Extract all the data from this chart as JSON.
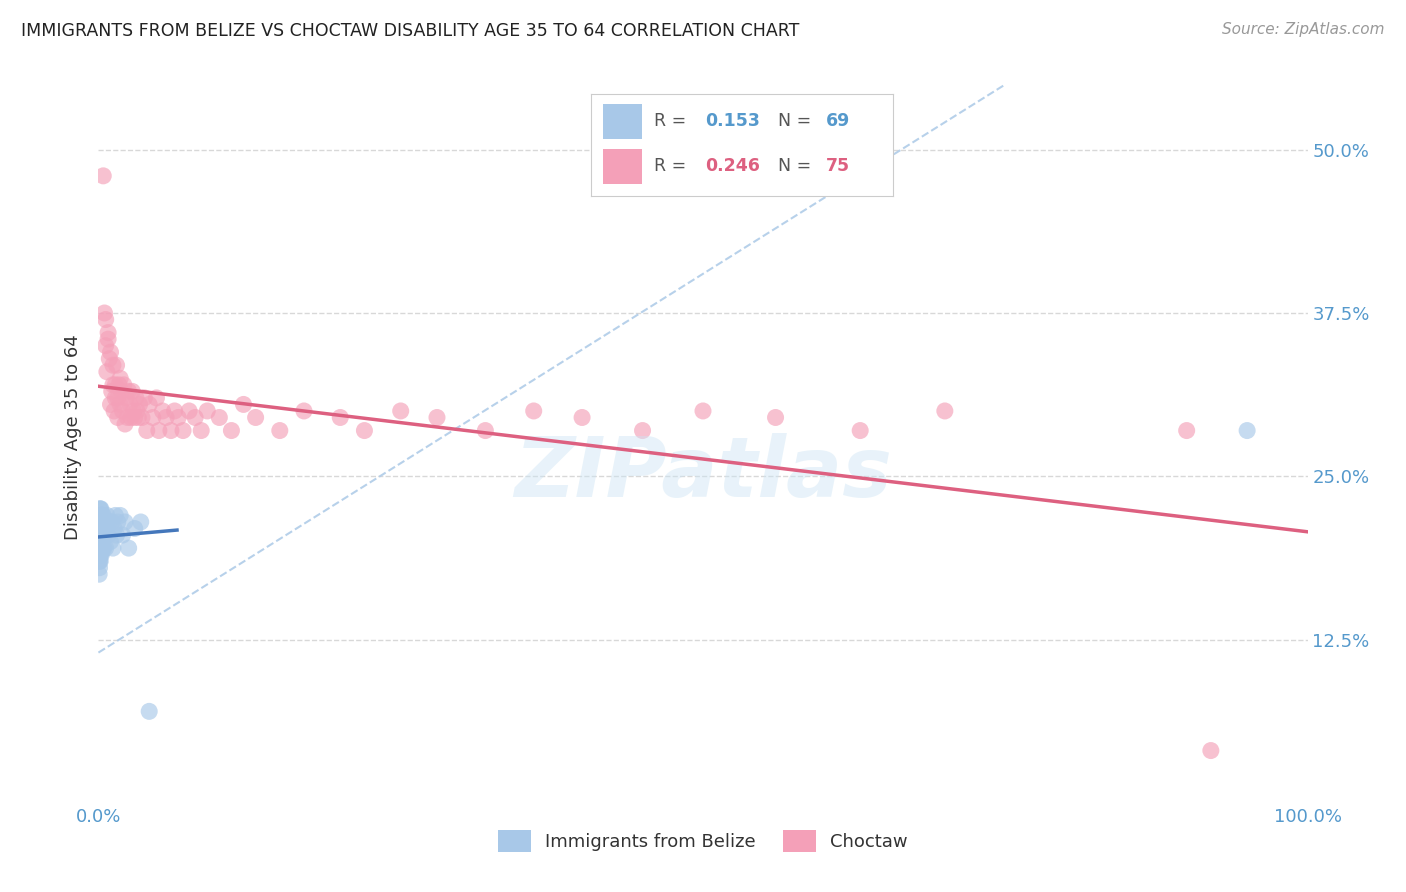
{
  "title": "IMMIGRANTS FROM BELIZE VS CHOCTAW DISABILITY AGE 35 TO 64 CORRELATION CHART",
  "source": "Source: ZipAtlas.com",
  "ylabel": "Disability Age 35 to 64",
  "y_tick_labels": [
    "12.5%",
    "25.0%",
    "37.5%",
    "50.0%"
  ],
  "xlim": [
    0.0,
    1.0
  ],
  "ylim": [
    0.0,
    0.56
  ],
  "y_ticks": [
    0.125,
    0.25,
    0.375,
    0.5
  ],
  "legend_labels": [
    "Immigrants from Belize",
    "Choctaw"
  ],
  "r_belize": 0.153,
  "n_belize": 69,
  "r_choctaw": 0.246,
  "n_choctaw": 75,
  "color_belize": "#a8c8e8",
  "color_choctaw": "#f4a0b8",
  "line_color_belize": "#4477bb",
  "line_color_choctaw": "#dd6080",
  "dashed_line_color": "#b0cce8",
  "background_color": "#ffffff",
  "grid_color": "#d8d8d8",
  "belize_x": [
    0.0003,
    0.0004,
    0.0005,
    0.0005,
    0.0006,
    0.0006,
    0.0007,
    0.0007,
    0.0008,
    0.0008,
    0.0009,
    0.0009,
    0.001,
    0.001,
    0.001,
    0.001,
    0.0012,
    0.0012,
    0.0013,
    0.0013,
    0.0014,
    0.0015,
    0.0015,
    0.0016,
    0.0016,
    0.0017,
    0.0017,
    0.0018,
    0.0019,
    0.002,
    0.002,
    0.002,
    0.0022,
    0.0023,
    0.0024,
    0.0025,
    0.0026,
    0.0027,
    0.003,
    0.003,
    0.0032,
    0.0033,
    0.0035,
    0.004,
    0.004,
    0.0045,
    0.005,
    0.005,
    0.006,
    0.006,
    0.007,
    0.007,
    0.008,
    0.009,
    0.01,
    0.011,
    0.012,
    0.013,
    0.014,
    0.015,
    0.016,
    0.018,
    0.02,
    0.022,
    0.025,
    0.03,
    0.035,
    0.042,
    0.95
  ],
  "belize_y": [
    0.215,
    0.195,
    0.205,
    0.185,
    0.22,
    0.175,
    0.21,
    0.19,
    0.2,
    0.215,
    0.18,
    0.22,
    0.225,
    0.195,
    0.21,
    0.185,
    0.205,
    0.22,
    0.19,
    0.215,
    0.195,
    0.21,
    0.185,
    0.225,
    0.2,
    0.215,
    0.195,
    0.205,
    0.19,
    0.215,
    0.2,
    0.225,
    0.195,
    0.21,
    0.22,
    0.19,
    0.205,
    0.215,
    0.195,
    0.21,
    0.22,
    0.195,
    0.205,
    0.215,
    0.22,
    0.195,
    0.21,
    0.205,
    0.215,
    0.195,
    0.21,
    0.22,
    0.205,
    0.215,
    0.2,
    0.215,
    0.195,
    0.21,
    0.22,
    0.205,
    0.215,
    0.22,
    0.205,
    0.215,
    0.195,
    0.21,
    0.215,
    0.07,
    0.285
  ],
  "choctaw_x": [
    0.004,
    0.005,
    0.006,
    0.006,
    0.007,
    0.008,
    0.008,
    0.009,
    0.01,
    0.01,
    0.011,
    0.012,
    0.012,
    0.013,
    0.014,
    0.014,
    0.015,
    0.016,
    0.016,
    0.017,
    0.018,
    0.018,
    0.019,
    0.02,
    0.021,
    0.022,
    0.023,
    0.024,
    0.025,
    0.026,
    0.027,
    0.028,
    0.029,
    0.03,
    0.031,
    0.032,
    0.033,
    0.034,
    0.036,
    0.038,
    0.04,
    0.042,
    0.045,
    0.048,
    0.05,
    0.053,
    0.056,
    0.06,
    0.063,
    0.066,
    0.07,
    0.075,
    0.08,
    0.085,
    0.09,
    0.1,
    0.11,
    0.12,
    0.13,
    0.15,
    0.17,
    0.2,
    0.22,
    0.25,
    0.28,
    0.32,
    0.36,
    0.4,
    0.45,
    0.5,
    0.56,
    0.63,
    0.7,
    0.9,
    0.92
  ],
  "choctaw_y": [
    0.48,
    0.375,
    0.37,
    0.35,
    0.33,
    0.355,
    0.36,
    0.34,
    0.305,
    0.345,
    0.315,
    0.32,
    0.335,
    0.3,
    0.31,
    0.32,
    0.335,
    0.31,
    0.295,
    0.32,
    0.305,
    0.325,
    0.315,
    0.3,
    0.32,
    0.29,
    0.31,
    0.295,
    0.315,
    0.305,
    0.295,
    0.315,
    0.3,
    0.295,
    0.31,
    0.3,
    0.295,
    0.305,
    0.295,
    0.31,
    0.285,
    0.305,
    0.295,
    0.31,
    0.285,
    0.3,
    0.295,
    0.285,
    0.3,
    0.295,
    0.285,
    0.3,
    0.295,
    0.285,
    0.3,
    0.295,
    0.285,
    0.305,
    0.295,
    0.285,
    0.3,
    0.295,
    0.285,
    0.3,
    0.295,
    0.285,
    0.3,
    0.295,
    0.285,
    0.3,
    0.295,
    0.285,
    0.3,
    0.285,
    0.04
  ]
}
